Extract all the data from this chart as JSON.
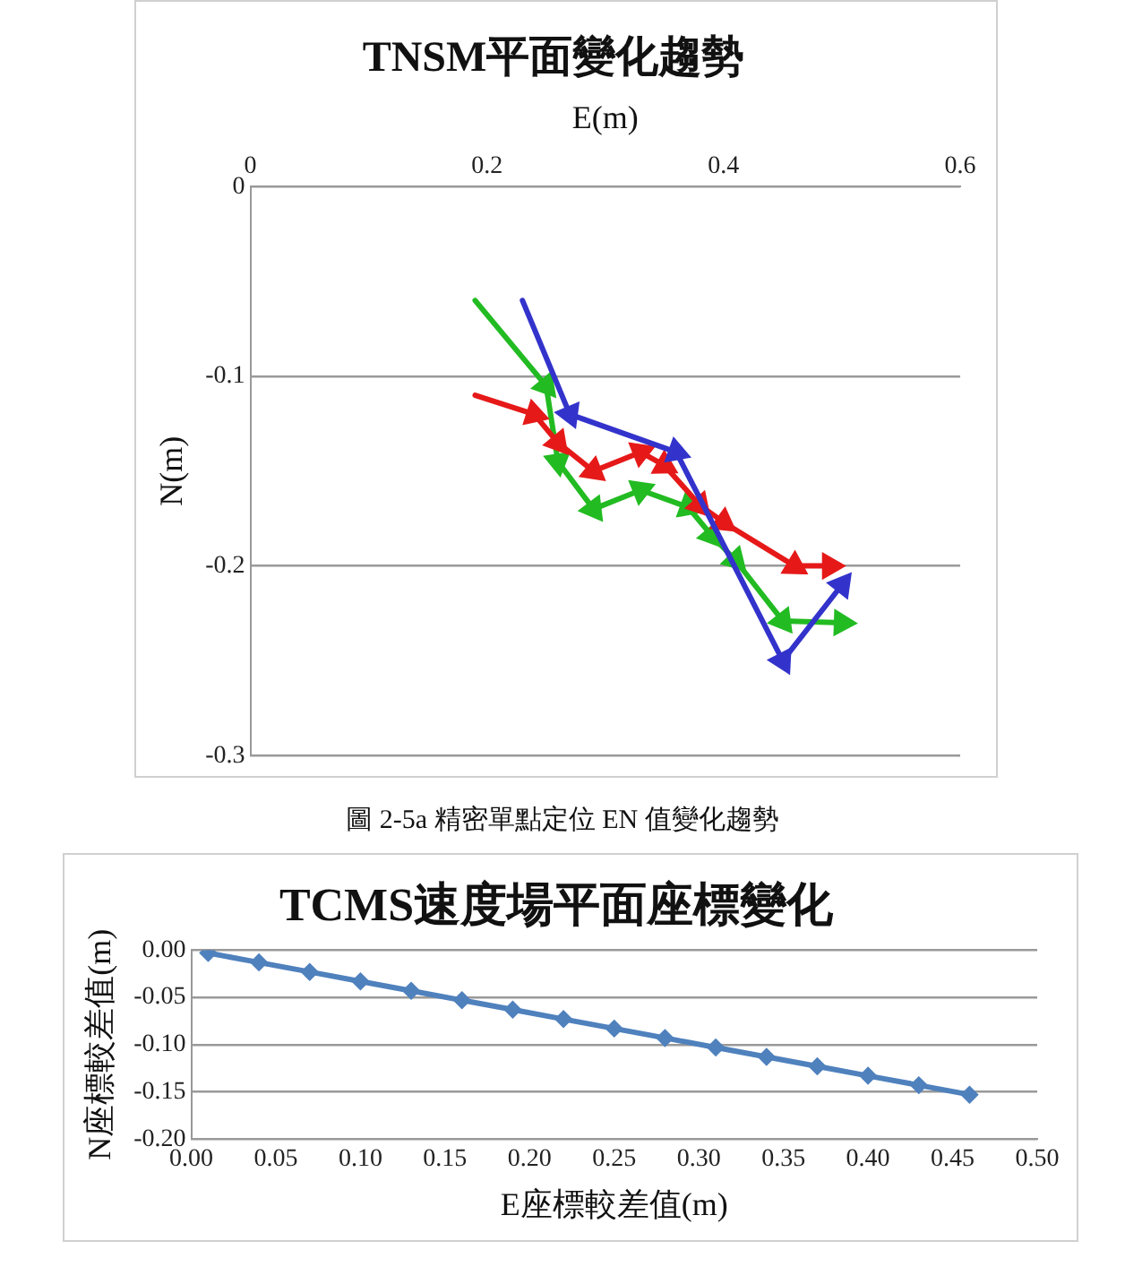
{
  "chart_data": [
    {
      "type": "line",
      "title": "TNSM平面變化趨勢",
      "xlabel": "E(m)",
      "ylabel": "N(m)",
      "annotations": [
        "圖 2-5a 精密單點定位 EN 值變化趨勢"
      ],
      "xlim": [
        0,
        0.6
      ],
      "xticks": [
        0,
        0.2,
        0.4,
        0.6
      ],
      "ylim": [
        -0.3,
        0
      ],
      "yticks": [
        -0.3,
        -0.2,
        -0.1,
        0
      ],
      "grid": "y",
      "marker": "triangle",
      "legend": false,
      "series": [
        {
          "color": "#3333cc",
          "x": [
            0.23,
            0.27,
            0.36,
            0.45,
            0.5
          ],
          "values": [
            -0.06,
            -0.12,
            -0.14,
            -0.25,
            -0.21
          ]
        },
        {
          "color": "#e61919",
          "x": [
            0.19,
            0.24,
            0.26,
            0.29,
            0.33,
            0.35,
            0.38,
            0.4,
            0.46,
            0.49
          ],
          "values": [
            -0.11,
            -0.12,
            -0.135,
            -0.15,
            -0.14,
            -0.147,
            -0.168,
            -0.177,
            -0.2,
            -0.2
          ]
        },
        {
          "color": "#22bb22",
          "x": [
            0.19,
            0.25,
            0.26,
            0.29,
            0.33,
            0.37,
            0.39,
            0.41,
            0.45,
            0.5
          ],
          "values": [
            -0.06,
            -0.105,
            -0.145,
            -0.17,
            -0.16,
            -0.169,
            -0.184,
            -0.197,
            -0.229,
            -0.23
          ]
        }
      ]
    },
    {
      "type": "line",
      "title": "TCMS速度場平面座標變化",
      "xlabel": "E座標較差值(m)",
      "ylabel": "N座標較差值(m)",
      "xlim": [
        0,
        0.5
      ],
      "xticks": [
        {
          "value": 0,
          "label": "0.00"
        },
        {
          "value": 0.05,
          "label": "0.05"
        },
        {
          "value": 0.1,
          "label": "0.10"
        },
        {
          "value": 0.15,
          "label": "0.15"
        },
        {
          "value": 0.2,
          "label": "0.20"
        },
        {
          "value": 0.25,
          "label": "0.25"
        },
        {
          "value": 0.3,
          "label": "0.30"
        },
        {
          "value": 0.35,
          "label": "0.35"
        },
        {
          "value": 0.4,
          "label": "0.40"
        },
        {
          "value": 0.45,
          "label": "0.45"
        },
        {
          "value": 0.5,
          "label": "0.50"
        }
      ],
      "ylim": [
        -0.2,
        0
      ],
      "yticks": [
        {
          "value": -0.2,
          "label": "-0.20"
        },
        {
          "value": -0.15,
          "label": "-0.15"
        },
        {
          "value": -0.1,
          "label": "-0.10"
        },
        {
          "value": -0.05,
          "label": "-0.05"
        },
        {
          "value": 0,
          "label": "0.00"
        }
      ],
      "grid": "y",
      "marker": "diamond",
      "legend": false,
      "series": [
        {
          "color": "#4f81bd",
          "x": [
            0.01,
            0.04,
            0.07,
            0.1,
            0.13,
            0.16,
            0.19,
            0.22,
            0.25,
            0.28,
            0.31,
            0.34,
            0.37,
            0.4,
            0.43,
            0.46
          ],
          "values": [
            -0.003,
            -0.013,
            -0.023,
            -0.033,
            -0.043,
            -0.053,
            -0.063,
            -0.073,
            -0.083,
            -0.093,
            -0.103,
            -0.113,
            -0.123,
            -0.133,
            -0.143,
            -0.153
          ]
        }
      ]
    }
  ]
}
